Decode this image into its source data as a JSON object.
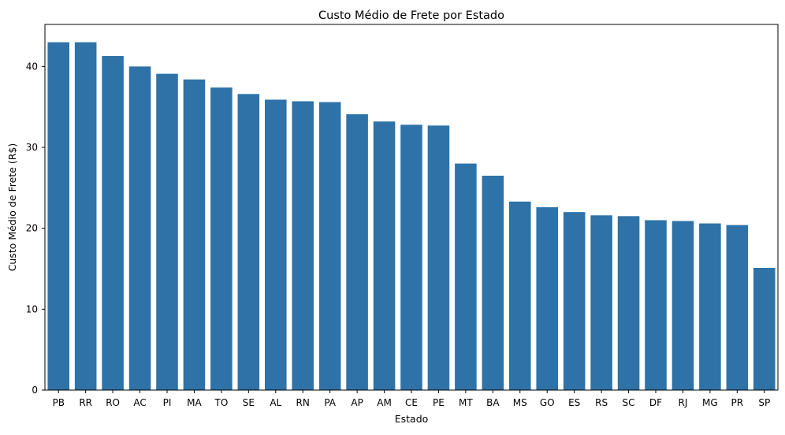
{
  "chart_data": {
    "type": "bar",
    "title": "Custo Médio de Frete por Estado",
    "xlabel": "Estado",
    "ylabel": "Custo Médio de Frete (R$)",
    "ylim": [
      0,
      45.2
    ],
    "yticks": [
      0,
      10,
      20,
      30,
      40
    ],
    "grid": false,
    "bar_color": "#2e72a8",
    "categories": [
      "PB",
      "RR",
      "RO",
      "AC",
      "PI",
      "MA",
      "TO",
      "SE",
      "AL",
      "RN",
      "PA",
      "AP",
      "AM",
      "CE",
      "PE",
      "MT",
      "BA",
      "MS",
      "GO",
      "ES",
      "RS",
      "SC",
      "DF",
      "RJ",
      "MG",
      "PR",
      "SP"
    ],
    "values": [
      43.0,
      43.0,
      41.3,
      40.0,
      39.1,
      38.4,
      37.4,
      36.6,
      35.9,
      35.7,
      35.6,
      34.1,
      33.2,
      32.8,
      32.7,
      28.0,
      26.5,
      23.3,
      22.6,
      22.0,
      21.6,
      21.5,
      21.0,
      20.9,
      20.6,
      20.4,
      15.1
    ]
  }
}
